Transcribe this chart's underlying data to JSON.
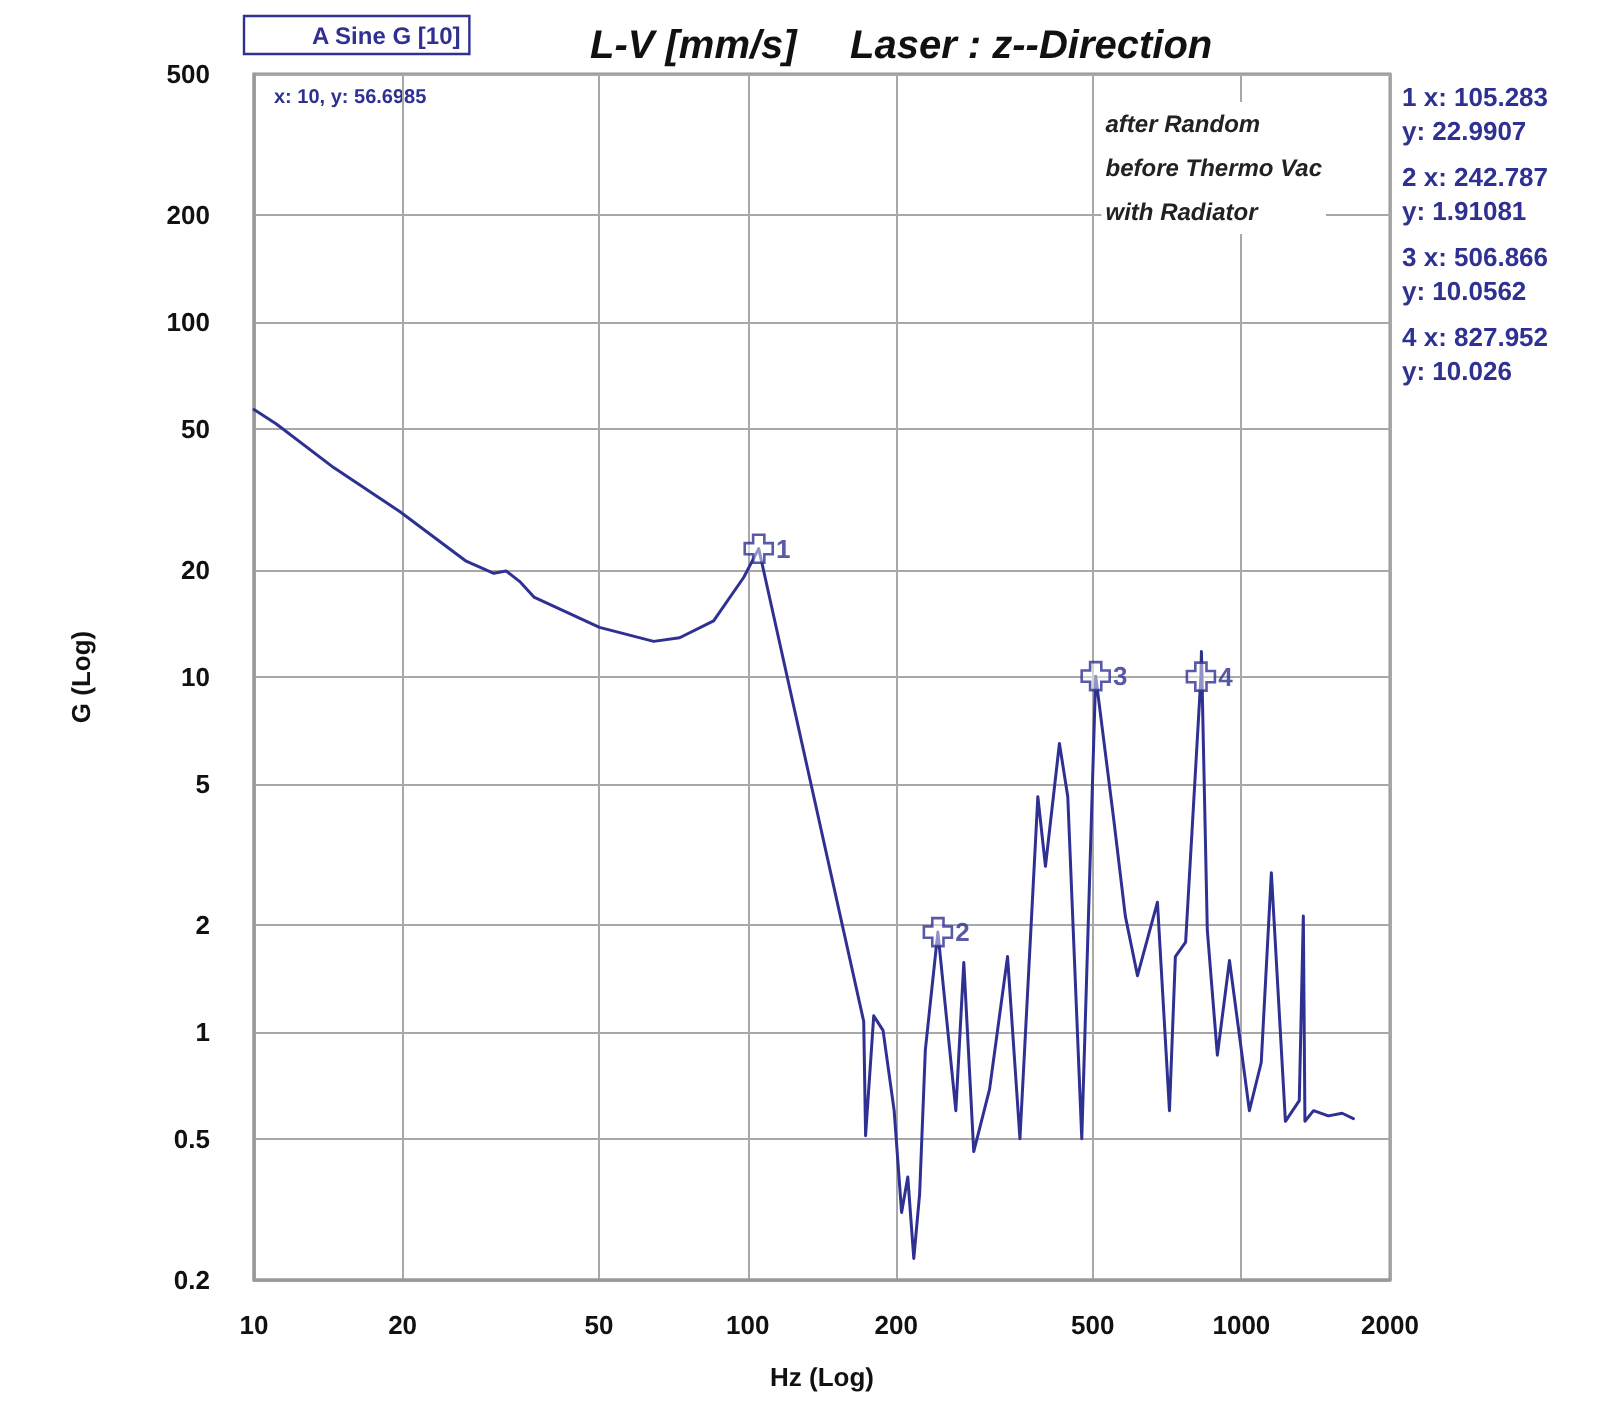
{
  "chart_data": {
    "type": "line",
    "title": "L-V [mm/s]",
    "subtitle": "Laser : z--Direction",
    "xlabel": "Hz (Log)",
    "ylabel": "G (Log)",
    "log": "xy",
    "grid": true,
    "legend": "top left",
    "marker": "none",
    "line_style": "solid",
    "xlim": [
      10,
      2000
    ],
    "xticks": [
      10,
      20,
      50,
      100,
      200,
      500,
      1000,
      2000
    ],
    "ylim": [
      0.2,
      500
    ],
    "yticks": [
      0.2,
      0.5,
      1,
      2,
      5,
      10,
      20,
      50,
      100,
      200,
      500
    ],
    "series": [
      {
        "name": "A Sine G [10]",
        "color": "#2e3192",
        "x": [
          10,
          11.1,
          14.5,
          19.7,
          26.9,
          30.6,
          32.4,
          34.5,
          36.9,
          50.1,
          64.5,
          72.8,
          85.3,
          98.2,
          105.283,
          171.8,
          173.3,
          180,
          188,
          198,
          205,
          211,
          217,
          223,
          229,
          242.787,
          264,
          274,
          287,
          309,
          336,
          356,
          387,
          401,
          428,
          445,
          475,
          506.866,
          551,
          582,
          616,
          676,
          715,
          735,
          771,
          827.952,
          830,
          853,
          894,
          946,
          1038,
          1097,
          1150,
          1228,
          1310,
          1335,
          1345,
          1400,
          1500,
          1600,
          1686
        ],
        "values": [
          56.6985,
          51.6,
          38.9,
          29.3,
          21.2,
          19.6,
          19.9,
          18.6,
          16.8,
          13.8,
          12.6,
          12.9,
          14.4,
          19.1,
          22.9907,
          1.07,
          0.51,
          1.11,
          1.01,
          0.6,
          0.31,
          0.39,
          0.23,
          0.35,
          0.89,
          1.91081,
          0.6,
          1.57,
          0.46,
          0.69,
          1.63,
          0.5,
          4.6,
          2.93,
          6.5,
          4.6,
          0.5,
          10.0562,
          4.0,
          2.12,
          1.44,
          2.32,
          0.6,
          1.63,
          1.79,
          10.026,
          11.8,
          1.94,
          0.86,
          1.59,
          0.6,
          0.82,
          2.81,
          0.56,
          0.64,
          2.12,
          0.56,
          0.6,
          0.58,
          0.59,
          0.57
        ]
      }
    ],
    "annotations": [
      "x: 10, y: 56.6985",
      {
        "text": "1",
        "x": 105.283,
        "y": 22.9907
      },
      {
        "text": "2",
        "x": 242.787,
        "y": 1.91081
      },
      {
        "text": "3",
        "x": 506.866,
        "y": 10.0562
      },
      {
        "text": "4",
        "x": 827.952,
        "y": 10.026
      },
      "after Random\nbefore Thermo Vac\nwith Radiator",
      "1 x: 105.283\ny: 22.9907",
      "2 x: 242.787\ny: 1.91081",
      "3 x: 506.866\ny: 10.0562",
      "4 x: 827.952\ny: 10.026"
    ]
  }
}
